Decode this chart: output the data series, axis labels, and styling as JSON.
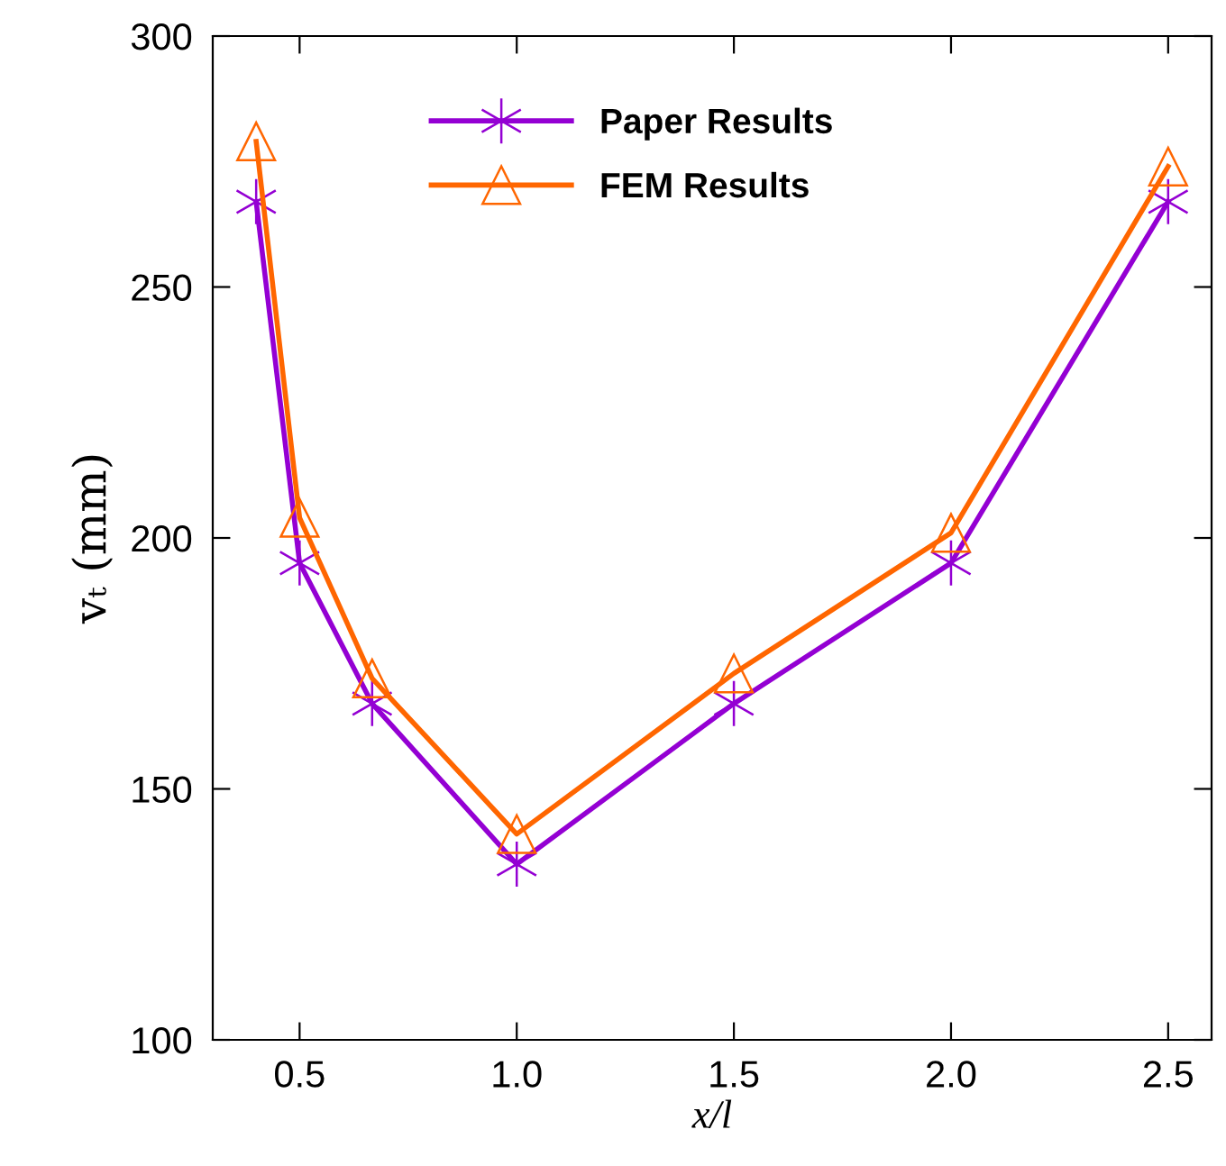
{
  "chart_data": {
    "type": "line",
    "xlabel": "x/l",
    "ylabel": "vₜ (mm)",
    "x": [
      0.4,
      0.5,
      0.667,
      1.0,
      1.5,
      2.0,
      2.5
    ],
    "series": [
      {
        "name": "Paper Results",
        "color": "#9400d3",
        "marker": "cross",
        "values": [
          267,
          195,
          167,
          135,
          167,
          195,
          267
        ]
      },
      {
        "name": "FEM Results",
        "color": "#ff6600",
        "marker": "triangle",
        "values": [
          279,
          204,
          172,
          141,
          173,
          201,
          274
        ]
      }
    ],
    "xlim": [
      0.3,
      2.6
    ],
    "ylim": [
      100,
      300
    ],
    "xticks": [
      {
        "value": 0.5,
        "label": "0.5"
      },
      {
        "value": 1.0,
        "label": "1.0"
      },
      {
        "value": 1.5,
        "label": "1.5"
      },
      {
        "value": 2.0,
        "label": "2.0"
      },
      {
        "value": 2.5,
        "label": "2.5"
      }
    ],
    "yticks": [
      100,
      150,
      200,
      250,
      300
    ],
    "grid": false,
    "legend": "top",
    "line_style": "solid"
  }
}
